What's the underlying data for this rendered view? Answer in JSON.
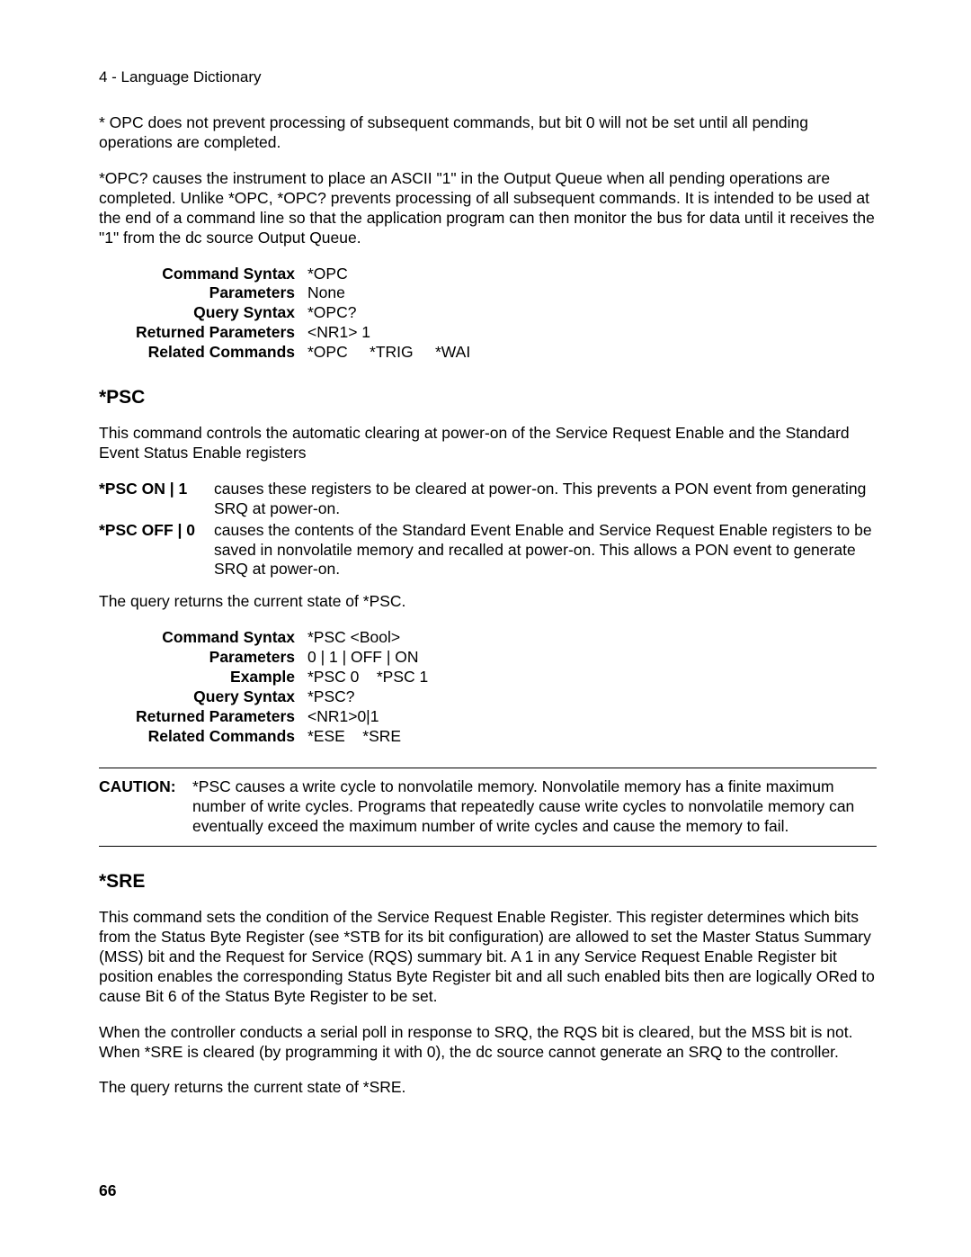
{
  "header": "4 - Language Dictionary",
  "opc_para1": "* OPC does not prevent processing of subsequent commands, but bit 0 will not be set until all pending operations are completed.",
  "opc_para2": "*OPC? causes the instrument to place an ASCII \"1\" in the Output Queue when all pending operations are completed.  Unlike *OPC, *OPC? prevents processing of  all subsequent commands. It is intended to be used at the end of a command line so that the application program can then monitor the bus for data until it receives the \"1\" from the dc source Output Queue.",
  "opc_table": {
    "r1_label": "Command Syntax",
    "r1_val": "*OPC",
    "r2_label": "Parameters",
    "r2_val": "None",
    "r3_label": "Query Syntax",
    "r3_val": "*OPC?",
    "r4_label": "Returned Parameters",
    "r4_val": "<NR1> 1",
    "r5_label": "Related Commands",
    "r5_val": "*OPC     *TRIG     *WAI"
  },
  "psc_heading": "*PSC",
  "psc_intro": "This command controls the automatic clearing at power-on of the Service Request Enable and the Standard Event Status Enable registers",
  "psc_opts": {
    "k1": "*PSC ON | 1",
    "v1": "causes these registers to be cleared at power-on. This prevents a PON event from generating SRQ at power-on.",
    "k2": "*PSC OFF | 0",
    "v2": "causes the contents of the Standard Event Enable and Service Request Enable registers to be saved in nonvolatile memory and recalled at power-on. This allows a PON event to generate SRQ at power-on."
  },
  "psc_query_line": "The query returns the current state of *PSC.",
  "psc_table": {
    "r1_label": "Command Syntax",
    "r1_val": "*PSC <Bool>",
    "r2_label": "Parameters",
    "r2_val": "0 | 1 | OFF | ON",
    "r3_label": "Example",
    "r3_val": "*PSC 0    *PSC 1",
    "r4_label": "Query Syntax",
    "r4_val": "*PSC?",
    "r5_label": "Returned Parameters",
    "r5_val": "<NR1>0|1",
    "r6_label": "Related Commands",
    "r6_val": "*ESE    *SRE"
  },
  "caution_label": "CAUTION:",
  "caution_text": "*PSC causes a write cycle to nonvolatile memory. Nonvolatile memory has a finite maximum number of write cycles. Programs that repeatedly cause write cycles to nonvolatile memory can eventually exceed the maximum number of write cycles and cause the memory to fail.",
  "sre_heading": "*SRE",
  "sre_para1": "This command sets the condition of the Service Request Enable Register. This register determines which bits from the Status Byte Register (see *STB for its bit configuration) are allowed to set the Master Status Summary (MSS) bit and the Request for Service (RQS) summary bit. A 1 in any Service Request Enable Register bit position enables the corresponding Status Byte Register bit and all such enabled bits then are logically ORed to cause Bit 6 of the Status Byte Register to be set.",
  "sre_para2": "When the controller conducts a serial poll in response to SRQ, the RQS bit is cleared, but the MSS bit is not. When *SRE is cleared (by programming it with 0), the dc source cannot generate an SRQ to the controller.",
  "sre_para3": "The query returns the current state of *SRE.",
  "page_number": "66"
}
